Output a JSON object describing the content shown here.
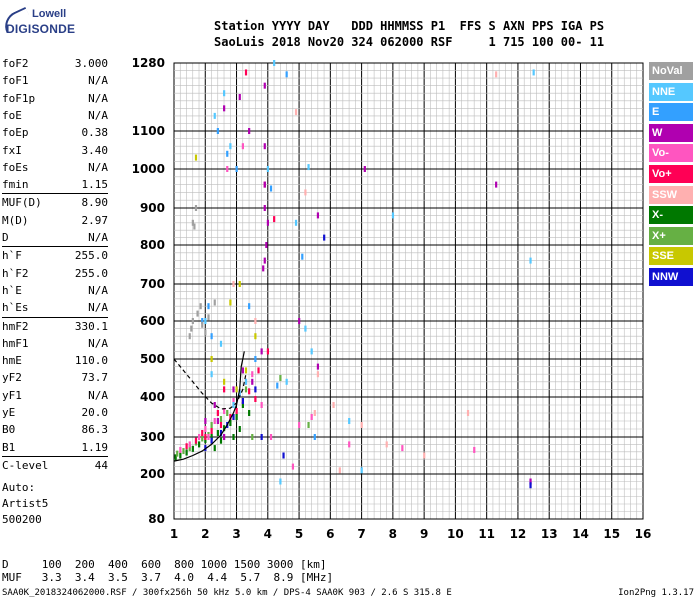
{
  "header": {
    "logo_line1": "Lowell",
    "logo_line2": "DIGISONDE",
    "row1": "Station YYYY DAY   DDD HHMMSS P1  FFS S AXN PPS IGA PS",
    "row2": "SaoLuis 2018 Nov20 324 062000 RSF     1 715 100 00- 11"
  },
  "params": [
    {
      "key": "foF2",
      "val": "3.000"
    },
    {
      "key": "foF1",
      "val": "N/A"
    },
    {
      "key": "foF1p",
      "val": "N/A"
    },
    {
      "key": "foE",
      "val": "N/A"
    },
    {
      "key": "foEp",
      "val": "0.38"
    },
    {
      "key": "fxI",
      "val": "3.40"
    },
    {
      "key": "foEs",
      "val": "N/A"
    },
    {
      "key": "fmin",
      "val": "1.15"
    },
    {
      "key": "MUF(D)",
      "val": "8.90"
    },
    {
      "key": "M(D)",
      "val": "2.97"
    },
    {
      "key": "D",
      "val": "N/A"
    },
    {
      "key": "h`F",
      "val": "255.0"
    },
    {
      "key": "h`F2",
      "val": "255.0"
    },
    {
      "key": "h`E",
      "val": "N/A"
    },
    {
      "key": "h`Es",
      "val": "N/A"
    },
    {
      "key": "hmF2",
      "val": "330.1"
    },
    {
      "key": "hmF1",
      "val": "N/A"
    },
    {
      "key": "hmE",
      "val": "110.0"
    },
    {
      "key": "yF2",
      "val": "73.7"
    },
    {
      "key": "yF1",
      "val": "N/A"
    },
    {
      "key": "yE",
      "val": "20.0"
    },
    {
      "key": "B0",
      "val": "86.3"
    },
    {
      "key": "B1",
      "val": "1.19"
    },
    {
      "key": "C-level",
      "val": "44"
    }
  ],
  "scaling": {
    "line1": "Auto:",
    "line2": "Artist5",
    "line3": "500200"
  },
  "legend": [
    {
      "label": "NoVal",
      "color": "#a0a0a0"
    },
    {
      "label": "NNE",
      "color": "#55c8ff"
    },
    {
      "label": "E",
      "color": "#33a0ff"
    },
    {
      "label": "W",
      "color": "#b000b0"
    },
    {
      "label": "Vo-",
      "color": "#ff55c0"
    },
    {
      "label": "Vo+",
      "color": "#ff0055"
    },
    {
      "label": "SSW",
      "color": "#ffb0b0"
    },
    {
      "label": "X-",
      "color": "#007800"
    },
    {
      "label": "X+",
      "color": "#66b044"
    },
    {
      "label": "SSE",
      "color": "#c8c800"
    },
    {
      "label": "NNW",
      "color": "#1010d0"
    }
  ],
  "bottom": {
    "dist_row": "D     100  200  400  600  800 1000 1500 3000 [km]",
    "muf_row": "MUF   3.3  3.4  3.5  3.7  4.0  4.4  5.7  8.9 [MHz]"
  },
  "footer": {
    "text": "SAA0K_2018324062000.RSF / 300fx256h 50 kHz 5.0 km / DPS-4 SAA0K 903 / 2.6 S 315.8 E",
    "version": "Ion2Png 1.3.17"
  },
  "chart_data": {
    "type": "scatter",
    "title": "",
    "xlabel": "",
    "ylabel": "",
    "xlim": [
      1,
      16
    ],
    "ylim": [
      80,
      1280
    ],
    "x_ticks": [
      1,
      2,
      3,
      4,
      5,
      6,
      7,
      8,
      9,
      10,
      11,
      12,
      13,
      14,
      15,
      16
    ],
    "y_ticks": [
      80,
      200,
      300,
      400,
      500,
      600,
      700,
      800,
      900,
      1000,
      1100,
      1280
    ],
    "grid": true,
    "legend_position": "right",
    "series": [
      {
        "name": "X-",
        "color": "#007800",
        "points": [
          [
            1.05,
            245
          ],
          [
            1.2,
            250
          ],
          [
            1.4,
            258
          ],
          [
            1.6,
            268
          ],
          [
            1.8,
            280
          ],
          [
            2.0,
            292
          ],
          [
            2.2,
            300
          ],
          [
            2.4,
            310
          ],
          [
            2.6,
            322
          ],
          [
            2.8,
            335
          ],
          [
            3.0,
            350
          ],
          [
            3.2,
            380
          ],
          [
            2.3,
            270
          ],
          [
            2.5,
            290
          ],
          [
            2.9,
            300
          ],
          [
            3.1,
            320
          ],
          [
            3.4,
            360
          ]
        ]
      },
      {
        "name": "X+",
        "color": "#66b044",
        "points": [
          [
            1.1,
            255
          ],
          [
            1.3,
            262
          ],
          [
            1.5,
            270
          ],
          [
            1.7,
            285
          ],
          [
            1.9,
            296
          ],
          [
            2.1,
            305
          ],
          [
            2.5,
            345
          ],
          [
            2.7,
            360
          ],
          [
            3.3,
            420
          ],
          [
            3.5,
            300
          ],
          [
            4.4,
            450
          ],
          [
            5.3,
            330
          ],
          [
            2.2,
            330
          ]
        ]
      },
      {
        "name": "Vo-",
        "color": "#ff55c0",
        "points": [
          [
            1.2,
            265
          ],
          [
            1.5,
            280
          ],
          [
            1.8,
            300
          ],
          [
            2.0,
            320
          ],
          [
            2.3,
            340
          ],
          [
            2.6,
            365
          ],
          [
            2.9,
            390
          ],
          [
            3.1,
            410
          ],
          [
            3.3,
            440
          ],
          [
            3.5,
            460
          ],
          [
            4.1,
            300
          ],
          [
            4.8,
            220
          ],
          [
            5.0,
            330
          ],
          [
            5.4,
            350
          ],
          [
            6.6,
            280
          ],
          [
            8.3,
            270
          ],
          [
            10.6,
            265
          ],
          [
            2.7,
            1000
          ],
          [
            3.2,
            1060
          ],
          [
            2.1,
            300
          ],
          [
            3.8,
            380
          ]
        ]
      },
      {
        "name": "Vo+",
        "color": "#ff0055",
        "points": [
          [
            1.4,
            275
          ],
          [
            1.7,
            290
          ],
          [
            2.0,
            300
          ],
          [
            2.2,
            315
          ],
          [
            2.5,
            330
          ],
          [
            2.8,
            350
          ],
          [
            3.0,
            365
          ],
          [
            3.2,
            390
          ],
          [
            3.4,
            415
          ],
          [
            3.6,
            395
          ],
          [
            2.4,
            360
          ],
          [
            3.9,
            960
          ],
          [
            4.2,
            870
          ],
          [
            3.3,
            1255
          ],
          [
            4.0,
            520
          ],
          [
            1.9,
            310
          ],
          [
            2.6,
            420
          ],
          [
            3.7,
            470
          ]
        ]
      },
      {
        "name": "W",
        "color": "#b000b0",
        "points": [
          [
            2.0,
            340
          ],
          [
            2.3,
            380
          ],
          [
            2.6,
            300
          ],
          [
            2.9,
            420
          ],
          [
            3.2,
            470
          ],
          [
            3.5,
            440
          ],
          [
            3.8,
            520
          ],
          [
            3.9,
            1220
          ],
          [
            3.9,
            1060
          ],
          [
            3.9,
            960
          ],
          [
            3.9,
            900
          ],
          [
            4.0,
            860
          ],
          [
            3.95,
            800
          ],
          [
            3.9,
            760
          ],
          [
            3.85,
            740
          ],
          [
            2.6,
            1160
          ],
          [
            5.0,
            600
          ],
          [
            5.6,
            480
          ],
          [
            7.1,
            1000
          ],
          [
            11.3,
            960
          ],
          [
            12.4,
            180
          ],
          [
            5.6,
            880
          ],
          [
            3.4,
            1100
          ],
          [
            3.1,
            1190
          ],
          [
            2.4,
            340
          ]
        ]
      },
      {
        "name": "NNE",
        "color": "#55c8ff",
        "points": [
          [
            2.0,
            600
          ],
          [
            2.3,
            1140
          ],
          [
            2.6,
            1200
          ],
          [
            2.9,
            380
          ],
          [
            3.1,
            410
          ],
          [
            3.3,
            440
          ],
          [
            4.0,
            1000
          ],
          [
            4.9,
            860
          ],
          [
            5.2,
            580
          ],
          [
            5.3,
            1005
          ],
          [
            4.4,
            180
          ],
          [
            6.6,
            340
          ],
          [
            7.0,
            210
          ],
          [
            8.0,
            880
          ],
          [
            12.5,
            1255
          ],
          [
            12.4,
            760
          ],
          [
            2.8,
            1060
          ],
          [
            2.5,
            540
          ],
          [
            2.2,
            460
          ],
          [
            4.6,
            440
          ],
          [
            5.4,
            520
          ],
          [
            4.2,
            1280
          ]
        ]
      },
      {
        "name": "E",
        "color": "#33a0ff",
        "points": [
          [
            2.1,
            640
          ],
          [
            2.4,
            1100
          ],
          [
            2.7,
            1040
          ],
          [
            3.0,
            1000
          ],
          [
            3.4,
            640
          ],
          [
            4.1,
            950
          ],
          [
            4.6,
            1250
          ],
          [
            5.1,
            770
          ],
          [
            1.9,
            600
          ],
          [
            2.2,
            560
          ],
          [
            3.6,
            500
          ],
          [
            4.3,
            430
          ],
          [
            5.5,
            300
          ]
        ]
      },
      {
        "name": "SSW",
        "color": "#ffb0b0",
        "points": [
          [
            5.6,
            460
          ],
          [
            5.5,
            360
          ],
          [
            6.1,
            380
          ],
          [
            6.3,
            210
          ],
          [
            7.0,
            330
          ],
          [
            7.8,
            280
          ],
          [
            11.3,
            1250
          ],
          [
            10.4,
            360
          ],
          [
            9.0,
            250
          ],
          [
            4.9,
            1150
          ],
          [
            2.9,
            700
          ],
          [
            5.2,
            940
          ],
          [
            3.6,
            600
          ]
        ]
      },
      {
        "name": "SSE",
        "color": "#c8c800",
        "points": [
          [
            2.6,
            440
          ],
          [
            3.0,
            420
          ],
          [
            3.3,
            470
          ],
          [
            3.6,
            560
          ],
          [
            1.7,
            1030
          ],
          [
            2.8,
            650
          ],
          [
            3.1,
            700
          ],
          [
            2.2,
            500
          ]
        ]
      },
      {
        "name": "NNW",
        "color": "#1010d0",
        "points": [
          [
            2.2,
            290
          ],
          [
            2.5,
            310
          ],
          [
            2.9,
            350
          ],
          [
            3.2,
            390
          ],
          [
            3.6,
            420
          ],
          [
            4.5,
            250
          ],
          [
            5.8,
            820
          ],
          [
            12.4,
            170
          ],
          [
            3.8,
            300
          ],
          [
            2.7,
            330
          ],
          [
            2.0,
            270
          ]
        ]
      },
      {
        "name": "NoVal",
        "color": "#a0a0a0",
        "points": [
          [
            1.6,
            860
          ],
          [
            1.7,
            900
          ],
          [
            1.65,
            850
          ],
          [
            1.5,
            560
          ],
          [
            1.55,
            580
          ],
          [
            1.75,
            620
          ],
          [
            1.85,
            640
          ],
          [
            1.9,
            590
          ],
          [
            2.0,
            570
          ],
          [
            2.1,
            610
          ],
          [
            1.6,
            600
          ],
          [
            2.3,
            650
          ]
        ]
      }
    ],
    "lines": [
      {
        "name": "virtual-height-trace",
        "dash": false,
        "points": [
          [
            1.0,
            235
          ],
          [
            1.3,
            240
          ],
          [
            1.6,
            250
          ],
          [
            1.9,
            262
          ],
          [
            2.2,
            280
          ],
          [
            2.5,
            305
          ],
          [
            2.7,
            330
          ],
          [
            2.9,
            360
          ],
          [
            3.0,
            380
          ],
          [
            3.1,
            420
          ],
          [
            3.15,
            480
          ],
          [
            3.2,
            500
          ],
          [
            3.25,
            520
          ]
        ]
      },
      {
        "name": "profile-trace",
        "dash": true,
        "points": [
          [
            1.0,
            500
          ],
          [
            1.3,
            470
          ],
          [
            1.6,
            440
          ],
          [
            1.9,
            410
          ],
          [
            2.2,
            385
          ],
          [
            2.5,
            370
          ],
          [
            2.8,
            372
          ],
          [
            3.0,
            385
          ],
          [
            3.2,
            420
          ],
          [
            3.3,
            460
          ]
        ]
      }
    ]
  }
}
